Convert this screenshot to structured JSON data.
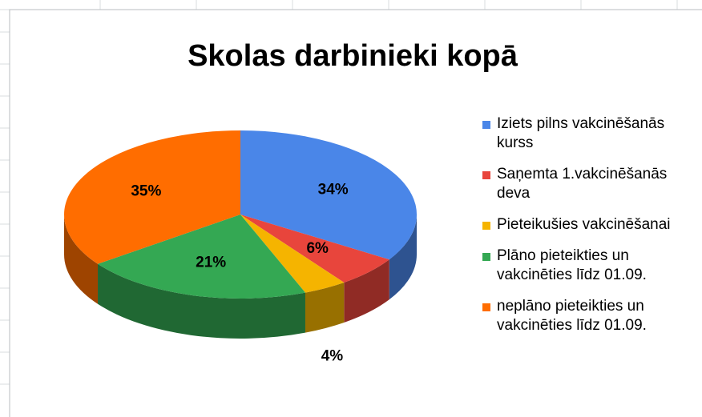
{
  "chart_data": {
    "type": "pie",
    "title": "Skolas darbinieki kopā",
    "categories": [
      "Iziets pilns vakcinēšanās kurss",
      "Saņemta 1.vakcinēšanās deva",
      "Pieteikušies vakcinēšanai",
      "Plāno pieteikties un vakcinēties līdz 01.09.",
      "neplāno pieteikties un vakcinēties līdz 01.09."
    ],
    "values": [
      34,
      6,
      4,
      21,
      35
    ],
    "value_labels": [
      "34%",
      "6%",
      "4%",
      "21%",
      "35%"
    ],
    "colors": [
      "#4a86e8",
      "#e8453c",
      "#f5b400",
      "#34a853",
      "#ff6d00"
    ],
    "legend": "right"
  }
}
